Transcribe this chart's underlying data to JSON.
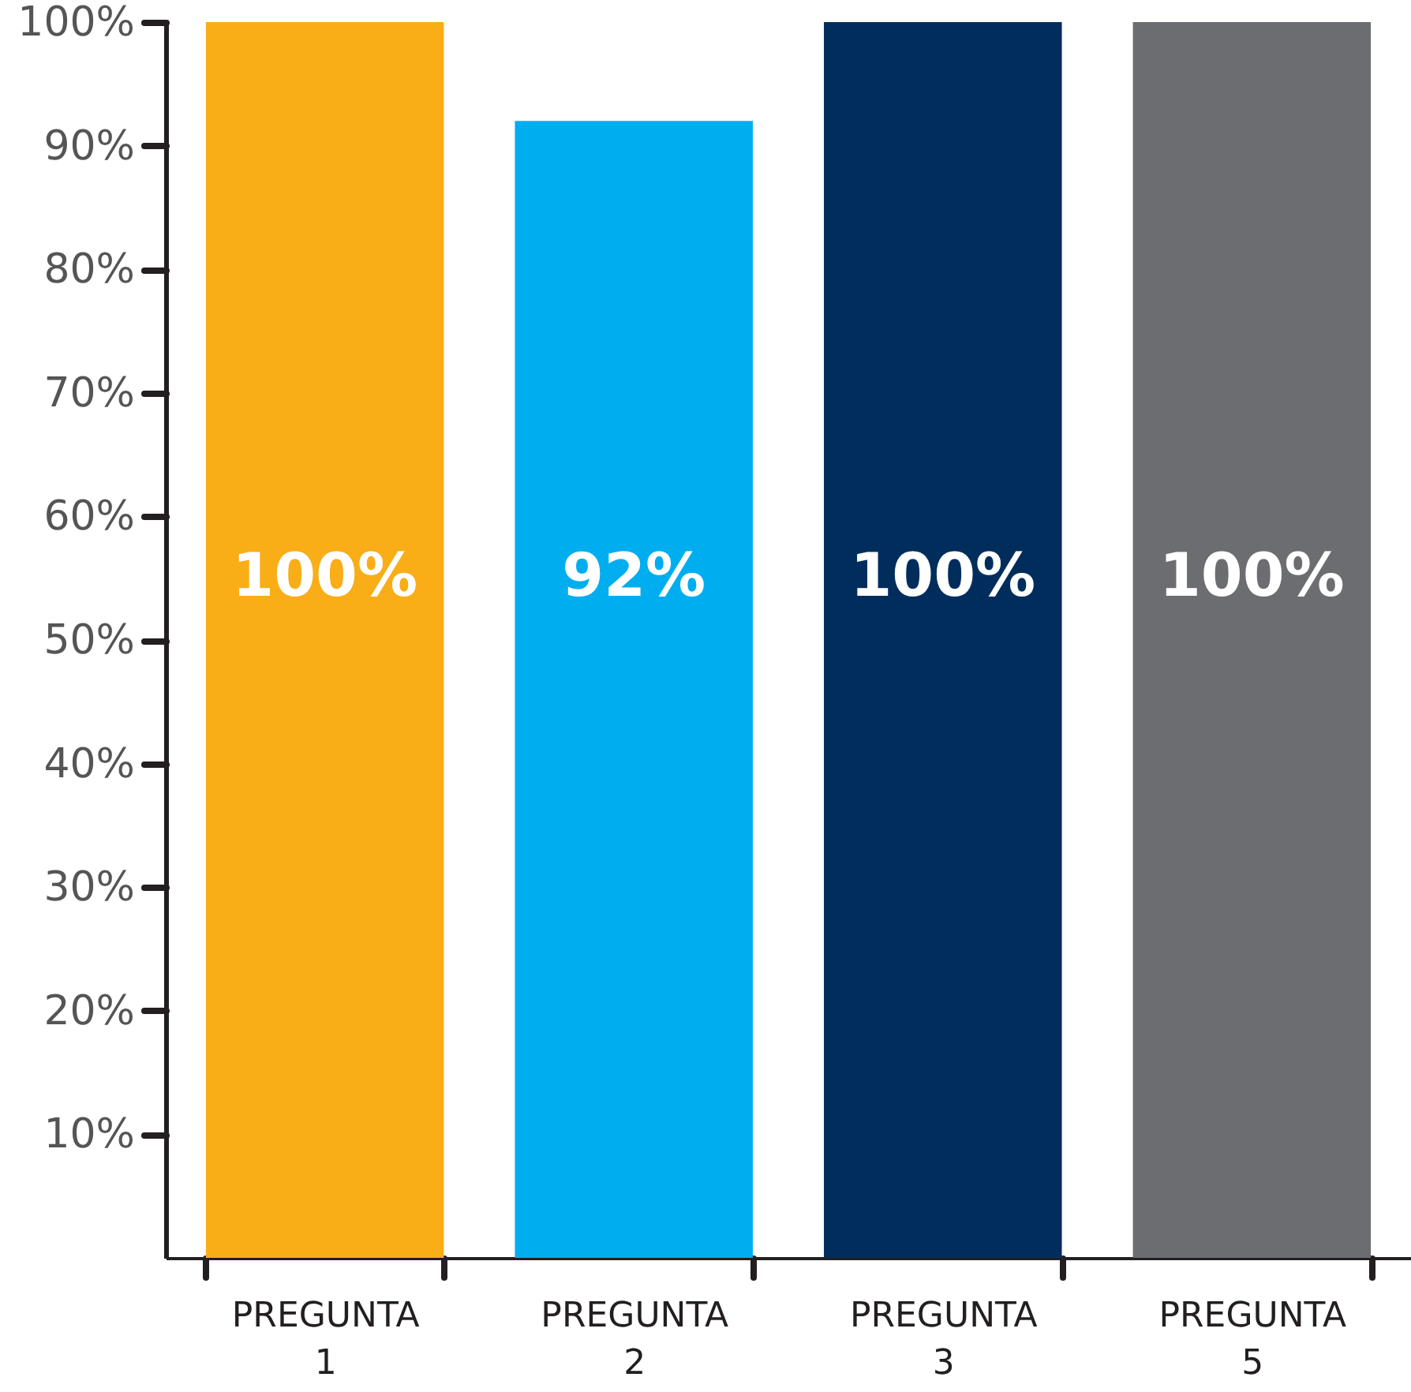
{
  "chart_data": {
    "type": "bar",
    "categories": [
      "PREGUNTA 1",
      "PREGUNTA 2",
      "PREGUNTA 3",
      "PREGUNTA 5"
    ],
    "values": [
      100,
      92,
      100,
      100
    ],
    "colors": [
      "#f9ad17",
      "#00aeef",
      "#002d5c",
      "#6c6d71"
    ],
    "value_labels": [
      "100%",
      "92%",
      "100%",
      "100%"
    ],
    "ylim": [
      0,
      100
    ],
    "yticks": [
      {
        "value": 10,
        "label": "10%"
      },
      {
        "value": 20,
        "label": "20%"
      },
      {
        "value": 30,
        "label": "30%"
      },
      {
        "value": 40,
        "label": "40%"
      },
      {
        "value": 50,
        "label": "50%"
      },
      {
        "value": 60,
        "label": "60%"
      },
      {
        "value": 70,
        "label": "70%"
      },
      {
        "value": 80,
        "label": "80%"
      },
      {
        "value": 90,
        "label": "90%"
      },
      {
        "value": 100,
        "label": "100%"
      }
    ],
    "grid": false
  }
}
